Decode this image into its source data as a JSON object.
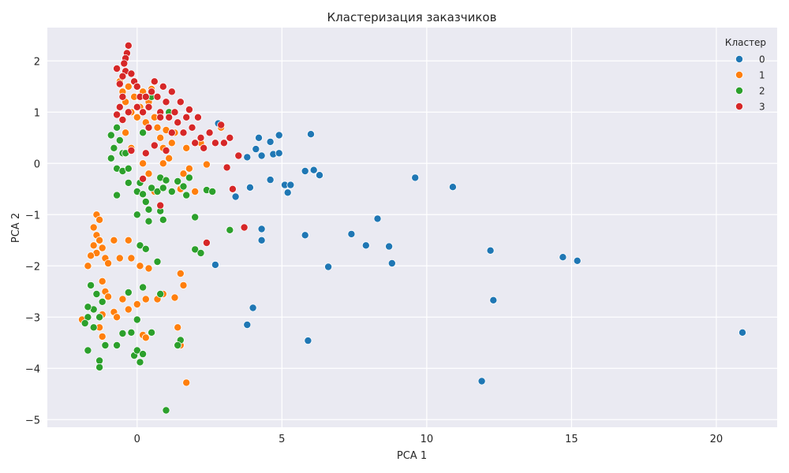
{
  "chart_data": {
    "type": "scatter",
    "title": "Кластеризация заказчиков",
    "xlabel": "PCA 1",
    "ylabel": "PCA 2",
    "xlim": [
      -3.1,
      22.1
    ],
    "ylim": [
      -5.15,
      2.65
    ],
    "xticks": [
      0,
      5,
      10,
      15,
      20
    ],
    "yticks": [
      -5,
      -4,
      -3,
      -2,
      -1,
      0,
      1,
      2
    ],
    "xtick_labels": [
      "0",
      "5",
      "10",
      "15",
      "20"
    ],
    "ytick_labels": [
      "−5",
      "−4",
      "−3",
      "−2",
      "−1",
      "0",
      "1",
      "2"
    ],
    "grid": true,
    "background": "#eaeaf2",
    "legend": {
      "title": "Кластер",
      "position": "top-right"
    },
    "series": [
      {
        "name": "0",
        "color": "#1f77b4",
        "points": [
          [
            2.8,
            0.78
          ],
          [
            3.4,
            -0.65
          ],
          [
            3.8,
            0.12
          ],
          [
            3.9,
            -0.47
          ],
          [
            4.1,
            0.28
          ],
          [
            4.2,
            0.5
          ],
          [
            4.3,
            0.15
          ],
          [
            4.6,
            0.42
          ],
          [
            4.7,
            0.18
          ],
          [
            4.9,
            0.55
          ],
          [
            4.9,
            0.2
          ],
          [
            4.6,
            -0.32
          ],
          [
            5.1,
            -0.42
          ],
          [
            5.2,
            -0.57
          ],
          [
            5.3,
            -0.42
          ],
          [
            5.8,
            -0.15
          ],
          [
            6.0,
            0.57
          ],
          [
            6.1,
            -0.13
          ],
          [
            6.3,
            -0.23
          ],
          [
            4.3,
            -1.28
          ],
          [
            4.3,
            -1.5
          ],
          [
            5.8,
            -1.4
          ],
          [
            7.4,
            -1.38
          ],
          [
            7.9,
            -1.6
          ],
          [
            8.3,
            -1.08
          ],
          [
            8.7,
            -1.62
          ],
          [
            8.8,
            -1.95
          ],
          [
            6.6,
            -2.02
          ],
          [
            2.7,
            -1.98
          ],
          [
            4.0,
            -2.82
          ],
          [
            3.8,
            -3.15
          ],
          [
            5.9,
            -3.46
          ],
          [
            9.6,
            -0.28
          ],
          [
            10.9,
            -0.46
          ],
          [
            12.2,
            -1.7
          ],
          [
            12.3,
            -2.67
          ],
          [
            11.9,
            -4.25
          ],
          [
            14.7,
            -1.83
          ],
          [
            15.2,
            -1.9
          ],
          [
            20.9,
            -3.3
          ]
        ]
      },
      {
        "name": "1",
        "color": "#ff7f0e",
        "points": [
          [
            -0.6,
            1.6
          ],
          [
            -0.5,
            1.4
          ],
          [
            -0.4,
            1.2
          ],
          [
            -0.3,
            1.5
          ],
          [
            -0.2,
            1.0
          ],
          [
            -0.1,
            1.3
          ],
          [
            0.0,
            0.9
          ],
          [
            0.1,
            1.1
          ],
          [
            0.2,
            1.4
          ],
          [
            0.3,
            0.8
          ],
          [
            0.4,
            1.2
          ],
          [
            0.5,
            1.45
          ],
          [
            0.6,
            0.9
          ],
          [
            0.7,
            0.7
          ],
          [
            0.8,
            0.5
          ],
          [
            0.9,
            0.3
          ],
          [
            1.0,
            0.65
          ],
          [
            1.1,
            0.1
          ],
          [
            1.2,
            0.4
          ],
          [
            1.3,
            0.6
          ],
          [
            1.5,
            -0.5
          ],
          [
            1.6,
            -0.2
          ],
          [
            1.7,
            0.3
          ],
          [
            1.8,
            -0.1
          ],
          [
            2.0,
            -0.55
          ],
          [
            2.2,
            0.4
          ],
          [
            2.4,
            -0.02
          ],
          [
            2.9,
            0.7
          ],
          [
            0.4,
            -0.2
          ],
          [
            0.6,
            -0.55
          ],
          [
            0.9,
            0.0
          ],
          [
            -0.4,
            0.6
          ],
          [
            -0.2,
            0.3
          ],
          [
            0.2,
            0.0
          ],
          [
            -1.4,
            -1.0
          ],
          [
            -1.3,
            -1.1
          ],
          [
            -1.5,
            -1.25
          ],
          [
            -1.4,
            -1.4
          ],
          [
            -1.3,
            -1.5
          ],
          [
            -1.5,
            -1.6
          ],
          [
            -1.4,
            -1.75
          ],
          [
            -1.2,
            -1.65
          ],
          [
            -1.1,
            -1.85
          ],
          [
            -1.0,
            -1.95
          ],
          [
            -0.8,
            -1.5
          ],
          [
            -0.6,
            -1.85
          ],
          [
            -0.3,
            -1.5
          ],
          [
            -0.2,
            -1.85
          ],
          [
            0.1,
            -2.0
          ],
          [
            0.4,
            -2.05
          ],
          [
            -1.6,
            -1.8
          ],
          [
            -1.7,
            -2.0
          ],
          [
            -1.2,
            -2.3
          ],
          [
            -1.1,
            -2.5
          ],
          [
            -1.0,
            -2.6
          ],
          [
            -0.8,
            -2.9
          ],
          [
            -0.7,
            -3.0
          ],
          [
            -0.5,
            -2.65
          ],
          [
            -0.3,
            -2.85
          ],
          [
            -1.9,
            -3.05
          ],
          [
            -1.2,
            -2.95
          ],
          [
            -1.3,
            -3.2
          ],
          [
            -1.2,
            -3.38
          ],
          [
            0.0,
            -2.75
          ],
          [
            0.3,
            -2.65
          ],
          [
            0.7,
            -2.65
          ],
          [
            0.9,
            -2.55
          ],
          [
            1.3,
            -2.62
          ],
          [
            1.5,
            -2.15
          ],
          [
            1.6,
            -2.38
          ],
          [
            1.4,
            -3.2
          ],
          [
            1.5,
            -3.55
          ],
          [
            0.2,
            -3.35
          ],
          [
            0.3,
            -3.4
          ],
          [
            1.7,
            -4.28
          ]
        ]
      },
      {
        "name": "2",
        "color": "#2ca02c",
        "points": [
          [
            -0.9,
            0.55
          ],
          [
            -0.8,
            0.3
          ],
          [
            -0.9,
            0.1
          ],
          [
            -0.7,
            0.7
          ],
          [
            -0.6,
            0.45
          ],
          [
            -0.5,
            0.2
          ],
          [
            -0.7,
            -0.1
          ],
          [
            -0.5,
            -0.15
          ],
          [
            -0.3,
            -0.1
          ],
          [
            -0.3,
            -0.38
          ],
          [
            0.0,
            -0.55
          ],
          [
            0.1,
            -0.38
          ],
          [
            0.2,
            -0.6
          ],
          [
            0.3,
            -0.75
          ],
          [
            0.4,
            -0.9
          ],
          [
            0.5,
            -0.48
          ],
          [
            0.7,
            -0.55
          ],
          [
            0.8,
            -0.28
          ],
          [
            0.9,
            -0.48
          ],
          [
            1.0,
            -0.33
          ],
          [
            1.2,
            -0.55
          ],
          [
            1.4,
            -0.35
          ],
          [
            1.6,
            -0.45
          ],
          [
            1.8,
            -0.28
          ],
          [
            1.7,
            -0.62
          ],
          [
            2.0,
            -1.05
          ],
          [
            2.4,
            -0.52
          ],
          [
            2.6,
            -0.55
          ],
          [
            -0.7,
            -0.62
          ],
          [
            0.0,
            -1.0
          ],
          [
            0.4,
            -1.13
          ],
          [
            0.8,
            -0.93
          ],
          [
            0.9,
            -1.1
          ],
          [
            0.1,
            -1.6
          ],
          [
            0.3,
            -1.67
          ],
          [
            0.7,
            -1.92
          ],
          [
            2.0,
            -1.68
          ],
          [
            2.2,
            -1.75
          ],
          [
            3.2,
            -1.3
          ],
          [
            -1.6,
            -2.38
          ],
          [
            -1.4,
            -2.55
          ],
          [
            -1.2,
            -2.7
          ],
          [
            -1.5,
            -2.85
          ],
          [
            -1.3,
            -3.0
          ],
          [
            -1.7,
            -3.0
          ],
          [
            -1.8,
            -3.12
          ],
          [
            -1.5,
            -3.2
          ],
          [
            -1.7,
            -2.8
          ],
          [
            -1.1,
            -3.55
          ],
          [
            -0.7,
            -3.55
          ],
          [
            -1.3,
            -3.85
          ],
          [
            -1.3,
            -3.98
          ],
          [
            -1.7,
            -3.65
          ],
          [
            -0.3,
            -2.52
          ],
          [
            0.2,
            -2.42
          ],
          [
            -0.2,
            -3.3
          ],
          [
            -0.5,
            -3.32
          ],
          [
            0.0,
            -3.05
          ],
          [
            -0.1,
            -3.75
          ],
          [
            0.0,
            -3.65
          ],
          [
            0.2,
            -3.72
          ],
          [
            0.1,
            -3.88
          ],
          [
            0.5,
            -3.3
          ],
          [
            0.8,
            -2.55
          ],
          [
            1.5,
            -3.45
          ],
          [
            1.4,
            -3.55
          ],
          [
            1.0,
            -4.82
          ],
          [
            0.5,
            1.3
          ],
          [
            1.1,
            1.0
          ],
          [
            -0.4,
            0.2
          ],
          [
            0.2,
            0.6
          ]
        ]
      },
      {
        "name": "3",
        "color": "#d62728",
        "points": [
          [
            -0.3,
            2.3
          ],
          [
            -0.35,
            2.15
          ],
          [
            -0.4,
            2.05
          ],
          [
            -0.45,
            1.95
          ],
          [
            -0.4,
            1.8
          ],
          [
            -0.5,
            1.7
          ],
          [
            -0.6,
            1.55
          ],
          [
            -0.7,
            1.85
          ],
          [
            -0.2,
            1.75
          ],
          [
            -0.1,
            1.6
          ],
          [
            0.0,
            1.5
          ],
          [
            0.1,
            1.3
          ],
          [
            -0.5,
            1.3
          ],
          [
            -0.6,
            1.1
          ],
          [
            -0.3,
            1.0
          ],
          [
            0.0,
            1.1
          ],
          [
            0.2,
            1.0
          ],
          [
            0.3,
            1.3
          ],
          [
            0.4,
            1.1
          ],
          [
            0.5,
            1.4
          ],
          [
            0.6,
            1.6
          ],
          [
            0.7,
            1.3
          ],
          [
            0.8,
            1.0
          ],
          [
            0.9,
            1.5
          ],
          [
            1.0,
            1.2
          ],
          [
            1.1,
            0.9
          ],
          [
            1.2,
            1.4
          ],
          [
            1.3,
            1.0
          ],
          [
            1.4,
            0.8
          ],
          [
            1.5,
            1.2
          ],
          [
            1.6,
            0.6
          ],
          [
            1.7,
            0.9
          ],
          [
            1.8,
            1.05
          ],
          [
            1.9,
            0.7
          ],
          [
            2.0,
            0.4
          ],
          [
            2.1,
            0.9
          ],
          [
            2.2,
            0.5
          ],
          [
            2.3,
            0.3
          ],
          [
            2.5,
            0.6
          ],
          [
            2.7,
            0.4
          ],
          [
            2.9,
            0.75
          ],
          [
            3.0,
            0.4
          ],
          [
            3.2,
            0.5
          ],
          [
            3.5,
            0.15
          ],
          [
            3.1,
            -0.08
          ],
          [
            3.3,
            -0.5
          ],
          [
            0.8,
            -0.82
          ],
          [
            0.2,
            -0.3
          ],
          [
            -0.2,
            0.25
          ],
          [
            0.3,
            0.2
          ],
          [
            0.6,
            0.35
          ],
          [
            2.4,
            -1.55
          ],
          [
            3.7,
            -1.25
          ],
          [
            0.8,
            0.9
          ],
          [
            1.2,
            0.6
          ],
          [
            0.4,
            0.7
          ],
          [
            -0.7,
            0.95
          ],
          [
            -0.5,
            0.85
          ],
          [
            1.0,
            0.25
          ]
        ]
      }
    ]
  }
}
